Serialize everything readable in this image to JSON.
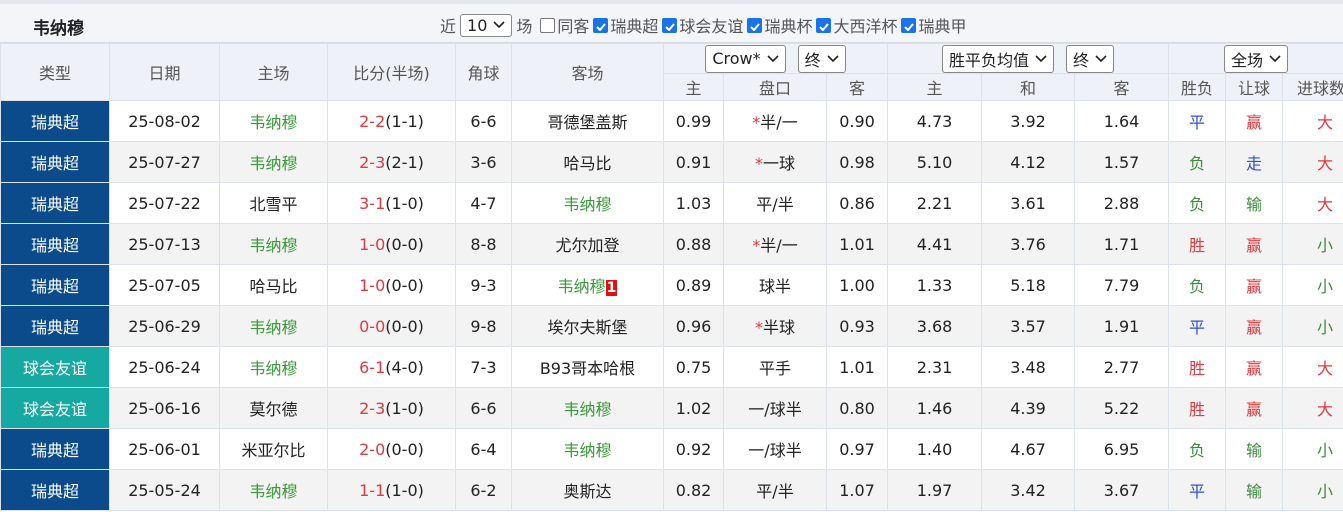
{
  "header": {
    "title": "韦纳穆",
    "near": "近",
    "count": "10",
    "unit": "场",
    "filters": [
      {
        "label": "同客",
        "checked": false
      },
      {
        "label": "瑞典超",
        "checked": true
      },
      {
        "label": "球会友谊",
        "checked": true
      },
      {
        "label": "瑞典杯",
        "checked": true
      },
      {
        "label": "大西洋杯",
        "checked": true
      },
      {
        "label": "瑞典甲",
        "checked": true
      }
    ]
  },
  "table": {
    "columns": {
      "type": "类型",
      "date": "日期",
      "home": "主场",
      "score": "比分(半场)",
      "corner": "角球",
      "away": "客场"
    },
    "odds_selects": [
      "Crow*",
      "终"
    ],
    "avg_selects": [
      "胜平负均值",
      "终"
    ],
    "result_select": "全场",
    "subcolumns": [
      "主",
      "盘口",
      "客",
      "主",
      "和",
      "客",
      "胜负",
      "让球",
      "进球数"
    ],
    "tones": {
      "red": "#e0393e",
      "green": "#3d8b3d",
      "blue": "#3050d0",
      "team": "#3a9a3a"
    },
    "rows": [
      {
        "type": "瑞典超",
        "type_color": "#0b4a8b",
        "date": "25-08-02",
        "home": "韦纳穆",
        "score": "2-2",
        "half": "(1-1)",
        "corner": "6-6",
        "away": "哥德堡盖斯",
        "odds_home": "0.99",
        "handicap_star": "*",
        "handicap": "半/一",
        "odds_away": "0.90",
        "avg_home": "4.73",
        "avg_draw": "3.92",
        "avg_away": "1.64",
        "result": "平",
        "result_tone": "blue",
        "handicap_result": "赢",
        "handicap_tone": "red",
        "goals": "大",
        "goals_tone": "red"
      },
      {
        "type": "瑞典超",
        "type_color": "#0b4a8b",
        "date": "25-07-27",
        "home": "韦纳穆",
        "score": "2-3",
        "half": "(2-1)",
        "corner": "3-6",
        "away": "哈马比",
        "odds_home": "0.91",
        "handicap_star": "*",
        "handicap": "一球",
        "odds_away": "0.98",
        "avg_home": "5.10",
        "avg_draw": "4.12",
        "avg_away": "1.57",
        "result": "负",
        "result_tone": "green",
        "handicap_result": "走",
        "handicap_tone": "blue",
        "goals": "大",
        "goals_tone": "red"
      },
      {
        "type": "瑞典超",
        "type_color": "#0b4a8b",
        "date": "25-07-22",
        "home": "北雪平",
        "score": "3-1",
        "half": "(1-0)",
        "corner": "4-7",
        "away": "韦纳穆",
        "odds_home": "1.03",
        "handicap": "平/半",
        "odds_away": "0.86",
        "avg_home": "2.21",
        "avg_draw": "3.61",
        "avg_away": "2.88",
        "result": "负",
        "result_tone": "green",
        "handicap_result": "输",
        "handicap_tone": "green",
        "goals": "大",
        "goals_tone": "red"
      },
      {
        "type": "瑞典超",
        "type_color": "#0b4a8b",
        "date": "25-07-13",
        "home": "韦纳穆",
        "score": "1-0",
        "half": "(0-0)",
        "corner": "8-8",
        "away": "尤尔加登",
        "odds_home": "0.88",
        "handicap_star": "*",
        "handicap": "半/一",
        "odds_away": "1.01",
        "avg_home": "4.41",
        "avg_draw": "3.76",
        "avg_away": "1.71",
        "result": "胜",
        "result_tone": "red",
        "handicap_result": "赢",
        "handicap_tone": "red",
        "goals": "小",
        "goals_tone": "green"
      },
      {
        "type": "瑞典超",
        "type_color": "#0b4a8b",
        "date": "25-07-05",
        "home": "哈马比",
        "score": "1-0",
        "half": "(0-0)",
        "corner": "9-3",
        "away": "韦纳穆",
        "away_badge": "1",
        "odds_home": "0.89",
        "handicap": "球半",
        "odds_away": "1.00",
        "avg_home": "1.33",
        "avg_draw": "5.18",
        "avg_away": "7.79",
        "result": "负",
        "result_tone": "green",
        "handicap_result": "赢",
        "handicap_tone": "red",
        "goals": "小",
        "goals_tone": "green"
      },
      {
        "type": "瑞典超",
        "type_color": "#0b4a8b",
        "date": "25-06-29",
        "home": "韦纳穆",
        "score": "0-0",
        "half": "(0-0)",
        "corner": "9-8",
        "away": "埃尔夫斯堡",
        "odds_home": "0.96",
        "handicap_star": "*",
        "handicap": "半球",
        "odds_away": "0.93",
        "avg_home": "3.68",
        "avg_draw": "3.57",
        "avg_away": "1.91",
        "result": "平",
        "result_tone": "blue",
        "handicap_result": "赢",
        "handicap_tone": "red",
        "goals": "小",
        "goals_tone": "green"
      },
      {
        "type": "球会友谊",
        "type_color": "#15a9a1",
        "date": "25-06-24",
        "home": "韦纳穆",
        "score": "6-1",
        "half": "(4-0)",
        "corner": "7-3",
        "away": "B93哥本哈根",
        "odds_home": "0.75",
        "handicap": "平手",
        "odds_away": "1.01",
        "avg_home": "2.31",
        "avg_draw": "3.48",
        "avg_away": "2.77",
        "result": "胜",
        "result_tone": "red",
        "handicap_result": "赢",
        "handicap_tone": "red",
        "goals": "大",
        "goals_tone": "red"
      },
      {
        "type": "球会友谊",
        "type_color": "#15a9a1",
        "date": "25-06-16",
        "home": "莫尔德",
        "score": "2-3",
        "half": "(1-0)",
        "corner": "6-6",
        "away": "韦纳穆",
        "odds_home": "1.02",
        "handicap": "一/球半",
        "odds_away": "0.80",
        "avg_home": "1.46",
        "avg_draw": "4.39",
        "avg_away": "5.22",
        "result": "胜",
        "result_tone": "red",
        "handicap_result": "赢",
        "handicap_tone": "red",
        "goals": "大",
        "goals_tone": "red"
      },
      {
        "type": "瑞典超",
        "type_color": "#0b4a8b",
        "date": "25-06-01",
        "home": "米亚尔比",
        "score": "2-0",
        "half": "(0-0)",
        "corner": "6-4",
        "away": "韦纳穆",
        "odds_home": "0.92",
        "handicap": "一/球半",
        "odds_away": "0.97",
        "avg_home": "1.40",
        "avg_draw": "4.67",
        "avg_away": "6.95",
        "result": "负",
        "result_tone": "green",
        "handicap_result": "输",
        "handicap_tone": "green",
        "goals": "小",
        "goals_tone": "green"
      },
      {
        "type": "瑞典超",
        "type_color": "#0b4a8b",
        "date": "25-05-24",
        "home": "韦纳穆",
        "score": "1-1",
        "half": "(1-0)",
        "corner": "6-2",
        "away": "奥斯达",
        "odds_home": "0.82",
        "handicap": "平/半",
        "odds_away": "1.07",
        "avg_home": "1.97",
        "avg_draw": "3.42",
        "avg_away": "3.67",
        "result": "平",
        "result_tone": "blue",
        "handicap_result": "输",
        "handicap_tone": "green",
        "goals": "小",
        "goals_tone": "green"
      }
    ]
  }
}
